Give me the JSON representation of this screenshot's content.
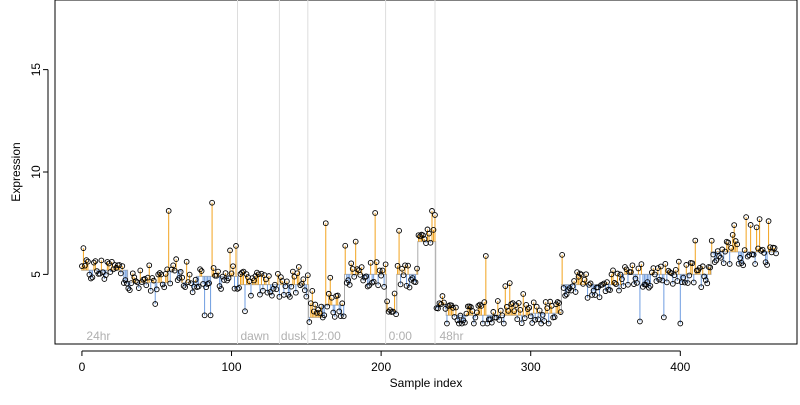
{
  "chart_data": {
    "type": "scatter",
    "xlabel": "Sample index",
    "ylabel": "Expression",
    "xlim": [
      -18,
      478
    ],
    "ylim": [
      1.6,
      18.4
    ],
    "xticks": [
      0,
      100,
      200,
      300,
      400
    ],
    "yticks": [
      5,
      10,
      15
    ],
    "grid": false,
    "legend": "none",
    "colors": {
      "points": "#000000",
      "above_fit": "#f2a31e",
      "below_fit": "#6f9de0",
      "fit_line": "#aaaaaa",
      "separators": "#dddddd",
      "annotation_text": "#b0b0b0",
      "axis": "#000000"
    },
    "separators": [
      104,
      132,
      151,
      203,
      236
    ],
    "annotations": [
      {
        "text": "24hr",
        "x": 3
      },
      {
        "text": "dawn",
        "x": 106
      },
      {
        "text": "dusk",
        "x": 133
      },
      {
        "text": "12:00",
        "x": 153
      },
      {
        "text": "0:00",
        "x": 205
      },
      {
        "text": "48hr",
        "x": 239
      }
    ],
    "annotation_y": 2.0,
    "fit_segments": [
      [
        0,
        30,
        5.2
      ],
      [
        31,
        57,
        4.6
      ],
      [
        58,
        66,
        5.2
      ],
      [
        67,
        76,
        4.6
      ],
      [
        77,
        104,
        4.9
      ],
      [
        105,
        151,
        4.5
      ],
      [
        152,
        160,
        2.9
      ],
      [
        161,
        175,
        3.5
      ],
      [
        176,
        203,
        5.0
      ],
      [
        204,
        210,
        3.2
      ],
      [
        211,
        224,
        5.0
      ],
      [
        225,
        236,
        6.6
      ],
      [
        237,
        243,
        3.5
      ],
      [
        244,
        300,
        3.0
      ],
      [
        301,
        320,
        3.1
      ],
      [
        321,
        360,
        4.5
      ],
      [
        361,
        420,
        5.0
      ],
      [
        421,
        464,
        6.1
      ]
    ],
    "spikes": [
      {
        "x": 58,
        "y": 8.1
      },
      {
        "x": 87,
        "y": 8.5
      },
      {
        "x": 163,
        "y": 7.5
      },
      {
        "x": 176,
        "y": 6.4
      },
      {
        "x": 183,
        "y": 6.6
      },
      {
        "x": 196,
        "y": 8.0
      },
      {
        "x": 234,
        "y": 8.1
      },
      {
        "x": 236,
        "y": 7.9
      },
      {
        "x": 270,
        "y": 5.9
      },
      {
        "x": 453,
        "y": 7.7
      },
      {
        "x": 459,
        "y": 7.6
      }
    ],
    "dips": [
      {
        "x": 82,
        "y": 3.0
      },
      {
        "x": 86,
        "y": 3.0
      },
      {
        "x": 109,
        "y": 3.2
      },
      {
        "x": 139,
        "y": 3.9
      },
      {
        "x": 373,
        "y": 2.7
      },
      {
        "x": 389,
        "y": 2.9
      },
      {
        "x": 400,
        "y": 2.6
      }
    ],
    "n_points": 465
  }
}
